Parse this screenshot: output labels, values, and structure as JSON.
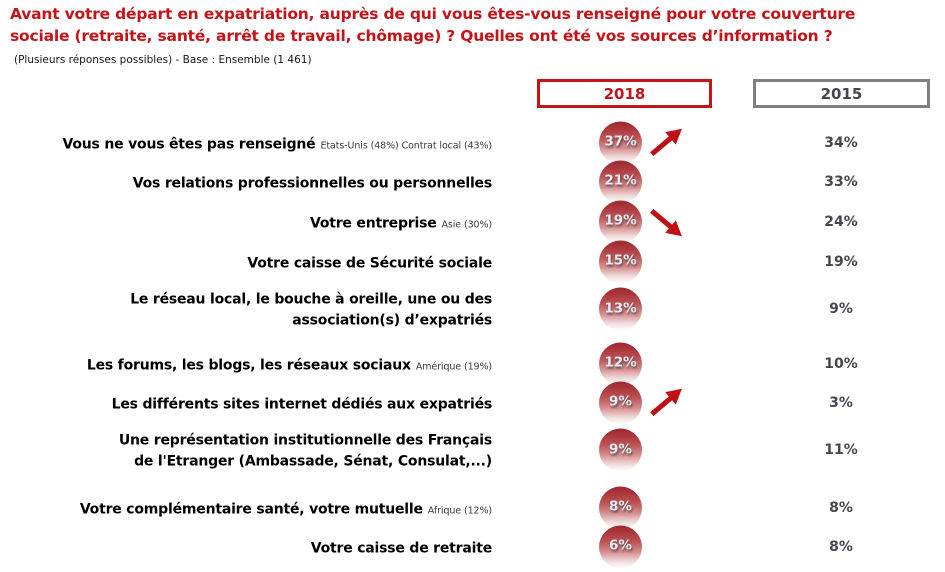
{
  "header": {
    "title_line1": "Avant votre départ en expatriation, auprès de qui vous êtes-vous renseigné pour votre couverture",
    "title_line2": "sociale (retraite, santé, arrêt de travail, chômage) ? Quelles ont été vos sources d’information ?",
    "subtitle": "(Plusieurs réponses possibles) - Base : Ensemble (1 461)"
  },
  "columns": [
    {
      "label": "2018"
    },
    {
      "label": "2015"
    }
  ],
  "colors": {
    "accent_red": "#C51318",
    "column_2015_border_gray": "#7F7F7F",
    "value_2015_text": "#46464E",
    "ball_red_top": "#9D292E",
    "trend_arrow_red": "#BE1016"
  },
  "chart_data": {
    "type": "table",
    "title": "Avant votre départ en expatriation, auprès de qui vous êtes-vous renseigné pour votre couverture sociale (retraite, santé, arrêt de travail, chômage) ? Quelles ont été vos sources d’information ?",
    "base": "(Plusieurs réponses possibles) - Base : Ensemble (1 461)",
    "columns": [
      "2018",
      "2015"
    ],
    "legend_position": "top",
    "rows": [
      {
        "label": "Vous ne vous êtes pas renseigné",
        "note": "Etats-Unis (48%) Contrat local (43%)",
        "value_2018": "37%",
        "value_2015": "34%",
        "trend": "up"
      },
      {
        "label": "Vos relations professionnelles ou personnelles",
        "note": "",
        "value_2018": "21%",
        "value_2015": "33%",
        "trend": ""
      },
      {
        "label": "Votre entreprise",
        "note": "Asie (30%)",
        "value_2018": "19%",
        "value_2015": "24%",
        "trend": "down"
      },
      {
        "label": "Votre caisse de Sécurité sociale",
        "note": "",
        "value_2018": "15%",
        "value_2015": "19%",
        "trend": ""
      },
      {
        "label": "Le réseau local, le bouche à oreille, une ou des\nassociation(s) d’expatriés",
        "note": "",
        "value_2018": "13%",
        "value_2015": "9%",
        "trend": ""
      },
      {
        "label": "Les forums, les blogs, les réseaux sociaux",
        "note": "Amérique (19%)",
        "value_2018": "12%",
        "value_2015": "10%",
        "trend": ""
      },
      {
        "label": "Les différents sites internet dédiés aux expatriés",
        "note": "",
        "value_2018": "9%",
        "value_2015": "3%",
        "trend": "up"
      },
      {
        "label": "Une représentation institutionnelle des Français\nde l'Etranger (Ambassade, Sénat, Consulat,...)",
        "note": "",
        "value_2018": "9%",
        "value_2015": "11%",
        "trend": ""
      },
      {
        "label": "Votre complémentaire santé, votre mutuelle",
        "note": "Afrique (12%)",
        "value_2018": "8%",
        "value_2015": "8%",
        "trend": ""
      },
      {
        "label": "Votre caisse de retraite",
        "note": "",
        "value_2018": "6%",
        "value_2015": "8%",
        "trend": ""
      }
    ],
    "series": [
      {
        "name": "2018",
        "values": [
          37,
          21,
          19,
          15,
          13,
          12,
          9,
          9,
          8,
          6
        ]
      },
      {
        "name": "2015",
        "values": [
          34,
          33,
          24,
          19,
          9,
          10,
          3,
          11,
          8,
          8
        ]
      }
    ]
  }
}
